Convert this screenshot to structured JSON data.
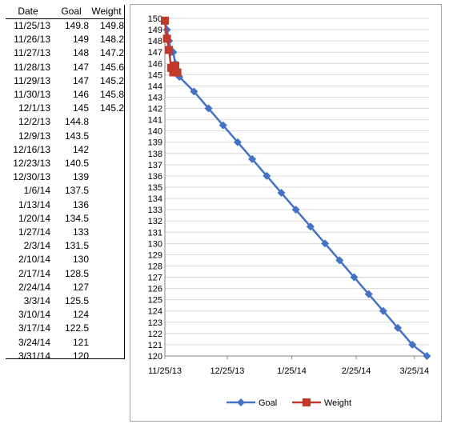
{
  "table": {
    "headers": {
      "date": "Date",
      "goal": "Goal",
      "weight": "Weight"
    },
    "rows": [
      {
        "date": "11/25/13",
        "goal": "149.8",
        "weight": "149.8"
      },
      {
        "date": "11/26/13",
        "goal": "149",
        "weight": "148.2"
      },
      {
        "date": "11/27/13",
        "goal": "148",
        "weight": "147.2"
      },
      {
        "date": "11/28/13",
        "goal": "147",
        "weight": "145.6"
      },
      {
        "date": "11/29/13",
        "goal": "147",
        "weight": "145.2"
      },
      {
        "date": "11/30/13",
        "goal": "146",
        "weight": "145.8"
      },
      {
        "date": "12/1/13",
        "goal": "145",
        "weight": "145.2"
      },
      {
        "date": "12/2/13",
        "goal": "144.8",
        "weight": ""
      },
      {
        "date": "12/9/13",
        "goal": "143.5",
        "weight": ""
      },
      {
        "date": "12/16/13",
        "goal": "142",
        "weight": ""
      },
      {
        "date": "12/23/13",
        "goal": "140.5",
        "weight": ""
      },
      {
        "date": "12/30/13",
        "goal": "139",
        "weight": ""
      },
      {
        "date": "1/6/14",
        "goal": "137.5",
        "weight": ""
      },
      {
        "date": "1/13/14",
        "goal": "136",
        "weight": ""
      },
      {
        "date": "1/20/14",
        "goal": "134.5",
        "weight": ""
      },
      {
        "date": "1/27/14",
        "goal": "133",
        "weight": ""
      },
      {
        "date": "2/3/14",
        "goal": "131.5",
        "weight": ""
      },
      {
        "date": "2/10/14",
        "goal": "130",
        "weight": ""
      },
      {
        "date": "2/17/14",
        "goal": "128.5",
        "weight": ""
      },
      {
        "date": "2/24/14",
        "goal": "127",
        "weight": ""
      },
      {
        "date": "3/3/14",
        "goal": "125.5",
        "weight": ""
      },
      {
        "date": "3/10/14",
        "goal": "124",
        "weight": ""
      },
      {
        "date": "3/17/14",
        "goal": "122.5",
        "weight": ""
      },
      {
        "date": "3/24/14",
        "goal": "121",
        "weight": ""
      },
      {
        "date": "3/31/14",
        "goal": "120",
        "weight": ""
      }
    ]
  },
  "chart_data": {
    "type": "line",
    "title": "",
    "xlabel": "",
    "ylabel": "",
    "ylim": [
      120,
      150
    ],
    "yticks": [
      120,
      121,
      122,
      123,
      124,
      125,
      126,
      127,
      128,
      129,
      130,
      131,
      132,
      133,
      134,
      135,
      136,
      137,
      138,
      139,
      140,
      141,
      142,
      143,
      144,
      145,
      146,
      147,
      148,
      149,
      150
    ],
    "xlim": [
      "2013-11-25",
      "2014-04-01"
    ],
    "xticks": [
      {
        "date": "2013-11-25",
        "label": "11/25/13"
      },
      {
        "date": "2013-12-25",
        "label": "12/25/13"
      },
      {
        "date": "2014-01-25",
        "label": "1/25/14"
      },
      {
        "date": "2014-02-25",
        "label": "2/25/14"
      },
      {
        "date": "2014-03-25",
        "label": "3/25/14"
      }
    ],
    "grid": true,
    "legend": "bottom",
    "series": [
      {
        "name": "Goal",
        "color": "#4472c4",
        "marker": "diamond",
        "x": [
          "2013-11-25",
          "2013-11-26",
          "2013-11-27",
          "2013-11-28",
          "2013-11-29",
          "2013-11-30",
          "2013-12-01",
          "2013-12-02",
          "2013-12-09",
          "2013-12-16",
          "2013-12-23",
          "2013-12-30",
          "2014-01-06",
          "2014-01-13",
          "2014-01-20",
          "2014-01-27",
          "2014-02-03",
          "2014-02-10",
          "2014-02-17",
          "2014-02-24",
          "2014-03-03",
          "2014-03-10",
          "2014-03-17",
          "2014-03-24",
          "2014-03-31"
        ],
        "values": [
          149.8,
          149,
          148,
          147,
          147,
          146,
          145,
          144.8,
          143.5,
          142,
          140.5,
          139,
          137.5,
          136,
          134.5,
          133,
          131.5,
          130,
          128.5,
          127,
          125.5,
          124,
          122.5,
          121,
          120
        ]
      },
      {
        "name": "Weight",
        "color": "#c0392b",
        "marker": "square",
        "x": [
          "2013-11-25",
          "2013-11-26",
          "2013-11-27",
          "2013-11-28",
          "2013-11-29",
          "2013-11-30",
          "2013-12-01"
        ],
        "values": [
          149.8,
          148.2,
          147.2,
          145.6,
          145.2,
          145.8,
          145.2
        ]
      }
    ]
  }
}
